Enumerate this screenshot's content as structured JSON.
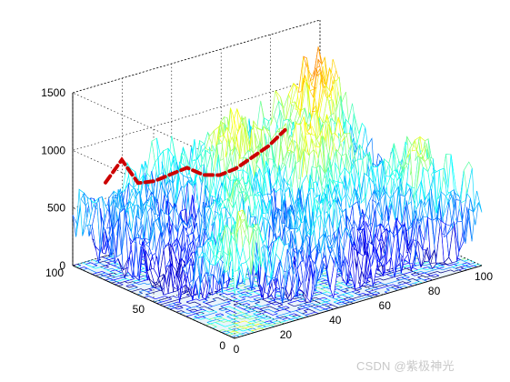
{
  "chart_data": {
    "type": "surface-mesh-3d",
    "title": "",
    "xlabel": "",
    "ylabel": "",
    "zlabel": "",
    "x_ticks": [
      0,
      20,
      40,
      60,
      80,
      100
    ],
    "y_ticks": [
      0,
      50,
      100
    ],
    "z_ticks": [
      0,
      500,
      1000,
      1500
    ],
    "xlim": [
      0,
      100
    ],
    "ylim": [
      0,
      100
    ],
    "zlim": [
      0,
      1500
    ],
    "grid": true,
    "colormap": "jet",
    "contour_on_floor": true,
    "z_peak_approx": 1470,
    "z_min_approx": 100,
    "highlight_path": {
      "color": "#cc0000",
      "style": "dashed",
      "z_values_approx": [
        720,
        880,
        640,
        620,
        640,
        660,
        560,
        520,
        540,
        600,
        660,
        760
      ]
    }
  },
  "watermark": "CSDN @紫极神光"
}
